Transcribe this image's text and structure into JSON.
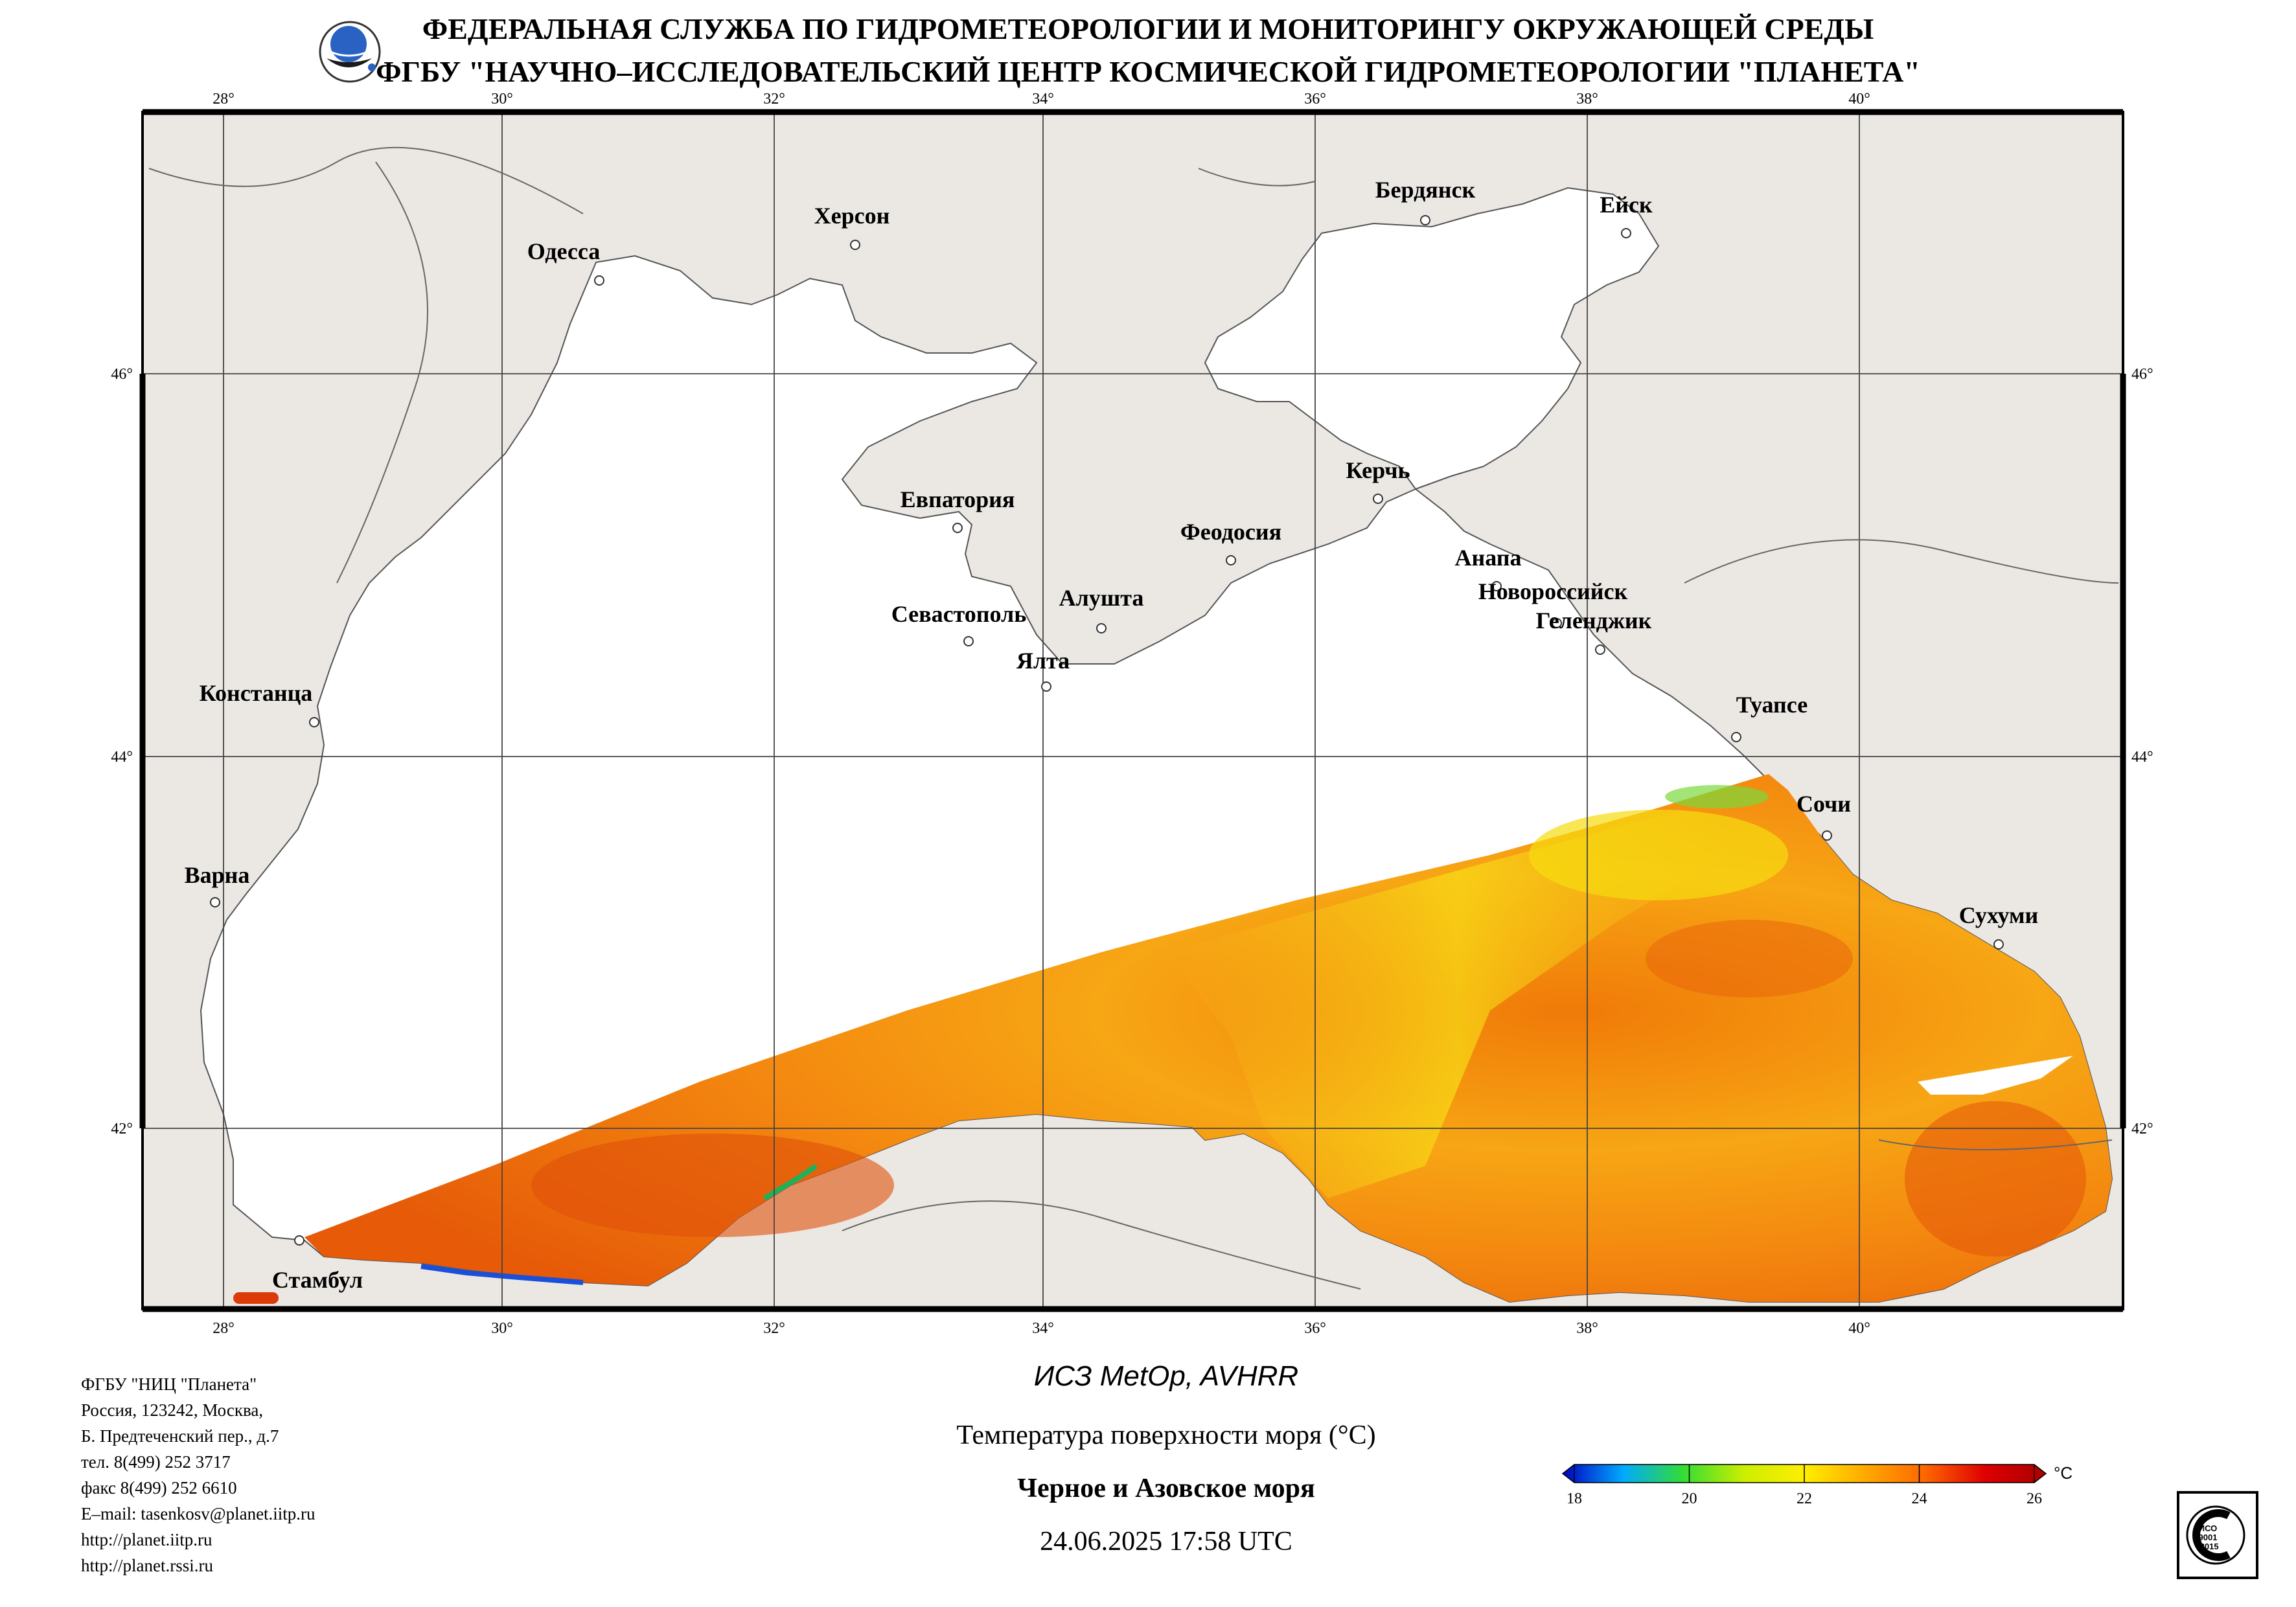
{
  "header": {
    "line1": "ФЕДЕРАЛЬНАЯ СЛУЖБА ПО ГИДРОМЕТЕОРОЛОГИИ И МОНИТОРИНГУ ОКРУЖАЮЩЕЙ СРЕДЫ",
    "line2": "ФГБУ \"НАУЧНО–ИССЛЕДОВАТЕЛЬСКИЙ ЦЕНТР КОСМИЧЕСКОЙ ГИДРОМЕТЕОРОЛОГИИ \"ПЛАНЕТА\""
  },
  "map": {
    "longitude_labels": [
      "28°",
      "30°",
      "32°",
      "34°",
      "36°",
      "38°",
      "40°"
    ],
    "latitude_labels": [
      "46°",
      "44°",
      "42°"
    ],
    "cities": [
      "Одесса",
      "Херсон",
      "Бердянск",
      "Ейск",
      "Евпатория",
      "Керчь",
      "Феодосия",
      "Анапа",
      "Новороссийск",
      "Геленджик",
      "Алушта",
      "Севастополь",
      "Ялта",
      "Констанца",
      "Туапсе",
      "Сочи",
      "Варна",
      "Сухуми",
      "Стамбул"
    ],
    "colors": {
      "land": "#ebe8e4",
      "sea_no_data": "#ffffff",
      "border": "#555555"
    }
  },
  "contact": {
    "lines": [
      "ФГБУ \"НИЦ \"Планета\"",
      "Россия, 123242, Москва,",
      "Б. Предтеченский пер., д.7",
      "тел. 8(499) 252 3717",
      "факс 8(499) 252 6610",
      "E–mail: tasenkosv@planet.iitp.ru",
      "http://planet.iitp.ru",
      "http://planet.rssi.ru"
    ]
  },
  "product": {
    "satellite": "ИСЗ MetOp, AVHRR",
    "parameter": "Температура поверхности моря (°C)",
    "region": "Черное и Азовское моря",
    "datetime": "24.06.2025 17:58 UTC"
  },
  "colorbar": {
    "min": 18,
    "max": 26,
    "ticks": [
      "18",
      "20",
      "22",
      "24",
      "26"
    ],
    "unit": "°C",
    "colors": [
      "#0000c0",
      "#00aaff",
      "#33dd33",
      "#ccee00",
      "#ffee00",
      "#ffaa00",
      "#ff6600",
      "#dd0000",
      "#aa0000"
    ]
  },
  "iso_badge": {
    "text": "ИСО 9001 -2015"
  }
}
